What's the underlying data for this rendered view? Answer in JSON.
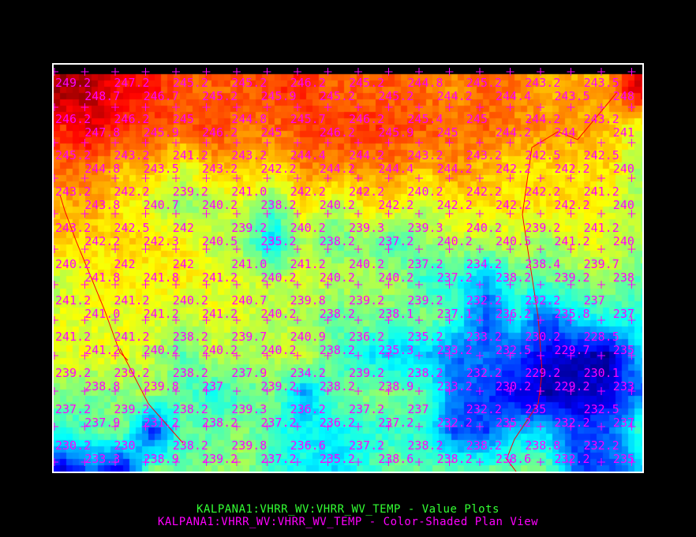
{
  "display": {
    "layer_labels": [
      "KALPANA1:VHRR_WV:VHRR_WV_TEMP - Value Plots",
      "KALPANA1:VHRR_WV:VHRR_WV_TEMP - Color-Shaded Plan View"
    ],
    "colors": {
      "background": "#000000",
      "value_plot": "#ff00ff",
      "value_label": "#33ff33",
      "map_lines": "#ff0000",
      "frame": "#ffffff"
    },
    "colormap": "rainbow (blue low, red high)",
    "value_grid": [
      [
        "249.2",
        "248.7",
        "247.2",
        "246.7",
        "245.2",
        "245.2",
        "245.2",
        "245.9",
        "246.2",
        "245.2",
        "245.2",
        "245.2",
        "244.8",
        "244.2",
        "245.2",
        "244.4",
        "243.2",
        "243.5",
        "243.5",
        "248"
      ],
      [
        "246.2",
        "247.8",
        "246.2",
        "245.9",
        "245",
        "246.2",
        "244.8",
        "245",
        "245.7",
        "246.2",
        "246.2",
        "245.9",
        "245.4",
        "245",
        "245",
        "244.2",
        "244.2",
        "244",
        "243.2",
        "241"
      ],
      [
        "245.2",
        "244.8",
        "243.2",
        "243.5",
        "241.2",
        "243.2",
        "243.2",
        "242.2",
        "244.4",
        "244.2",
        "244.2",
        "244.4",
        "243.2",
        "244.2",
        "243.2",
        "242.2",
        "242.5",
        "242.2",
        "242.5",
        "240"
      ],
      [
        "243.2",
        "243.8",
        "242.2",
        "240.7",
        "239.2",
        "240.2",
        "241.0",
        "238.2",
        "242.2",
        "240.2",
        "242.2",
        "242.2",
        "240.2",
        "242.2",
        "242.2",
        "242.2",
        "242.2",
        "242.2",
        "241.2",
        "240"
      ],
      [
        "243.2",
        "242.2",
        "242.5",
        "242.3",
        "242",
        "240.5",
        "239.2",
        "235.2",
        "240.2",
        "238.2",
        "239.3",
        "237.2",
        "239.3",
        "240.2",
        "240.2",
        "240.5",
        "239.2",
        "241.2",
        "241.2",
        "240"
      ],
      [
        "240.2",
        "241.8",
        "242",
        "241.8",
        "242",
        "241.2",
        "241.0",
        "240.2",
        "241.2",
        "240.2",
        "240.2",
        "240.2",
        "237.2",
        "237.2",
        "234.2",
        "238.2",
        "238.4",
        "239.2",
        "239.7",
        "238"
      ],
      [
        "241.2",
        "241.0",
        "241.2",
        "241.2",
        "240.2",
        "241.2",
        "240.7",
        "240.2",
        "239.8",
        "238.2",
        "239.2",
        "238.1",
        "239.2",
        "237.1",
        "232.2",
        "236.2",
        "232.2",
        "235.8",
        "237",
        "237"
      ],
      [
        "241.2",
        "241.2",
        "241.2",
        "240.2",
        "238.2",
        "240.2",
        "239.7",
        "240.2",
        "240.9",
        "238.2",
        "236.2",
        "235.3",
        "235.2",
        "233.2",
        "233.2",
        "232.5",
        "230.2",
        "229.7",
        "228.5",
        "235"
      ],
      [
        "239.2",
        "238.8",
        "239.2",
        "239.8",
        "238.2",
        "237",
        "237.9",
        "239.2",
        "234.2",
        "238.2",
        "239.2",
        "238.9",
        "238.2",
        "233.2",
        "232.2",
        "230.2",
        "229.2",
        "229.2",
        "230.1",
        "233"
      ],
      [
        "237.2",
        "237.9",
        "239.2",
        "231.2",
        "238.2",
        "238.2",
        "239.3",
        "237.2",
        "236.2",
        "236.2",
        "237.2",
        "237.2",
        "237",
        "232.2",
        "232.2",
        "235.2",
        "235",
        "232.2",
        "232.5",
        "237"
      ],
      [
        "230.2",
        "233.3",
        "230",
        "238.9",
        "238.2",
        "239.2",
        "239.8",
        "237.2",
        "236.6",
        "235.2",
        "237.2",
        "238.6",
        "238.2",
        "238.2",
        "238.2",
        "238.6",
        "238.8",
        "232.2",
        "232.2",
        "235"
      ]
    ],
    "color_range": [
      228,
      250
    ]
  }
}
